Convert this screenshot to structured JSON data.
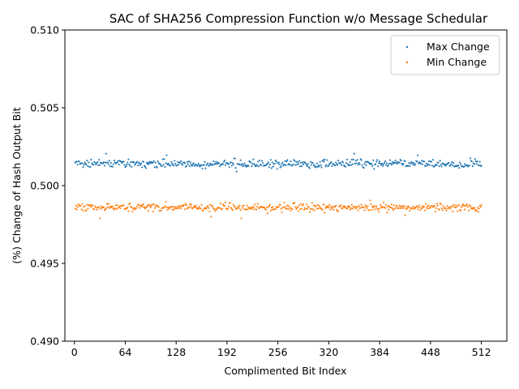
{
  "chart_data": {
    "type": "scatter",
    "title": "SAC of SHA256 Compression Function w/o Message Schedular",
    "xlabel": "Complimented Bit Index",
    "ylabel": "(%) Change of Hash Output Bit",
    "xlim": [
      -12,
      544
    ],
    "ylim": [
      0.49,
      0.51
    ],
    "xticks": [
      0,
      64,
      128,
      192,
      256,
      320,
      384,
      448,
      512
    ],
    "yticks": [
      0.49,
      0.495,
      0.5,
      0.505,
      0.51
    ],
    "ytick_labels": [
      "0.490",
      "0.495",
      "0.500",
      "0.505",
      "0.510"
    ],
    "grid": false,
    "legend_position": "top-right",
    "series": [
      {
        "name": "Max Change",
        "color": "#1f77b4",
        "x_range": [
          1,
          512
        ],
        "center": 0.5014,
        "spread": 0.00055,
        "notable_points": [
          [
            40,
            0.50205
          ],
          [
            116,
            0.50195
          ],
          [
            204,
            0.5009
          ],
          [
            352,
            0.50205
          ],
          [
            432,
            0.50195
          ]
        ]
      },
      {
        "name": "Min Change",
        "color": "#ff7f0e",
        "x_range": [
          1,
          512
        ],
        "center": 0.4986,
        "spread": 0.00055,
        "notable_points": [
          [
            32,
            0.4979
          ],
          [
            210,
            0.4979
          ],
          [
            372,
            0.49905
          ],
          [
            172,
            0.498
          ],
          [
            416,
            0.4981
          ]
        ]
      }
    ]
  }
}
